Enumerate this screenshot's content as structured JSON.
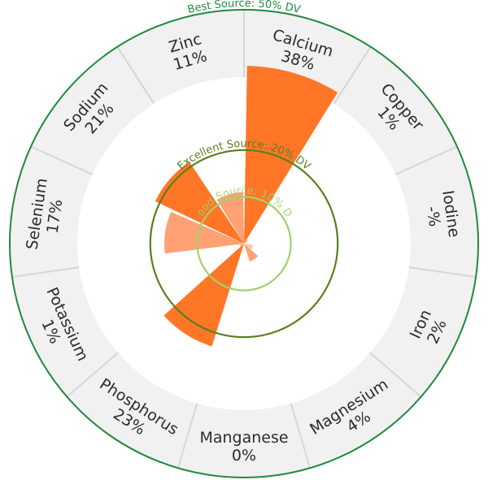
{
  "chart_data": {
    "type": "radial-bar",
    "unit": "% DV",
    "categories": [
      "Calcium",
      "Copper",
      "Iodine",
      "Iron",
      "Magnesium",
      "Manganese",
      "Phosphorus",
      "Potassium",
      "Selenium",
      "Sodium",
      "Zinc"
    ],
    "values": [
      38,
      1,
      null,
      2,
      4,
      0,
      23,
      1,
      17,
      21,
      11
    ],
    "value_labels": [
      "38%",
      "1%",
      "-%",
      "2%",
      "4%",
      "0%",
      "23%",
      "1%",
      "17%",
      "21%",
      "11%"
    ],
    "rmax": 50,
    "reference_rings": [
      {
        "label": "Good Source: 10% DV",
        "value": 10,
        "color": "#9fd26a"
      },
      {
        "label": "Excellent Source: 20% DV",
        "value": 20,
        "color": "#5b7f1f"
      },
      {
        "label": "Best Source: 50% DV",
        "value": 50,
        "color": "#1e8a3c"
      }
    ],
    "colors": {
      "high": "#ff7626",
      "medium": "#ffa173",
      "low": "#ffc39f"
    }
  }
}
